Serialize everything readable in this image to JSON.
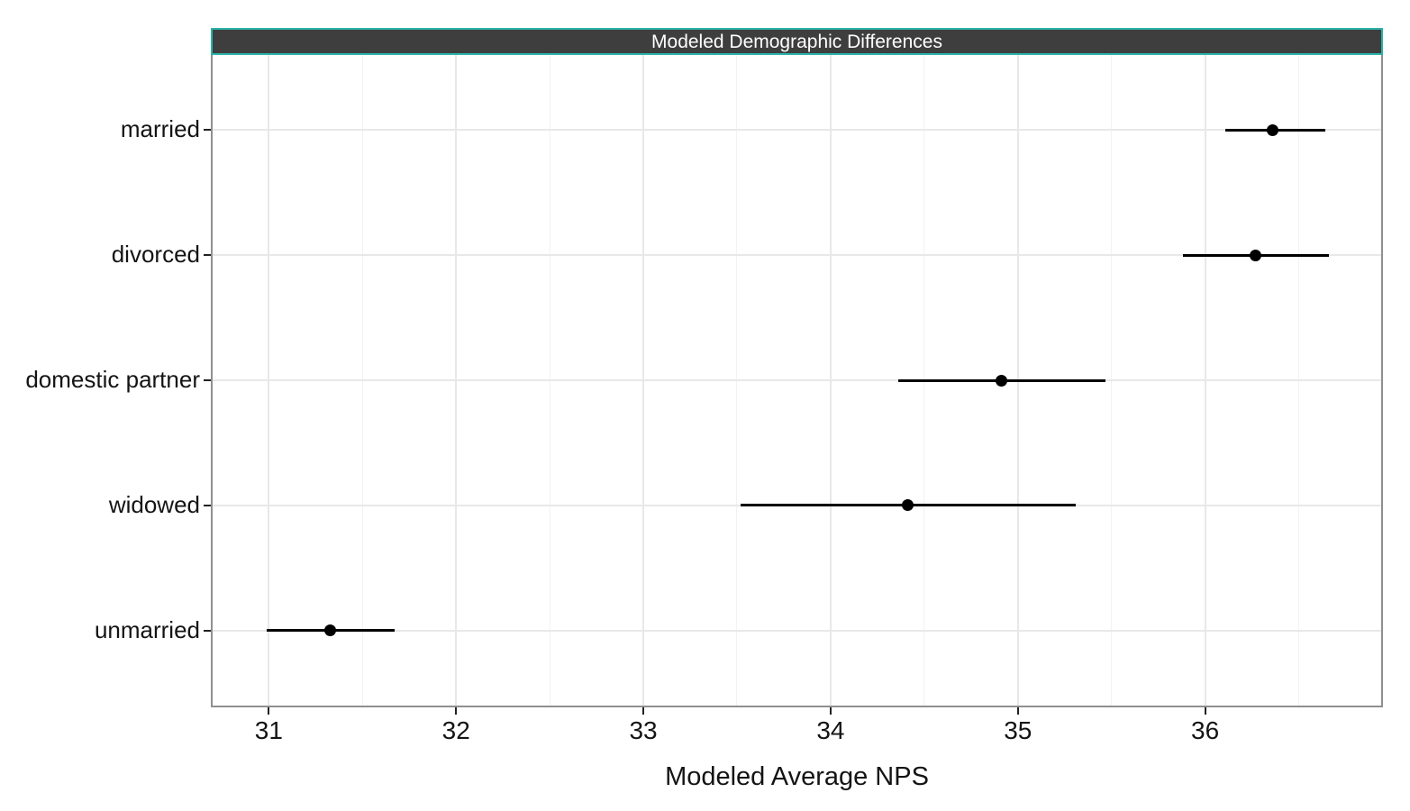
{
  "chart_data": {
    "type": "scatter",
    "subtype": "point-estimate-with-confidence-interval",
    "title": "Modeled Demographic Differences",
    "xlabel": "Modeled Average NPS",
    "ylabel": "",
    "categories": [
      "married",
      "divorced",
      "domestic partner",
      "widowed",
      "unmarried"
    ],
    "points": [
      {
        "category": "married",
        "estimate": 36.36,
        "ci_low": 36.11,
        "ci_high": 36.64
      },
      {
        "category": "divorced",
        "estimate": 36.27,
        "ci_low": 35.88,
        "ci_high": 36.66
      },
      {
        "category": "domestic partner",
        "estimate": 34.91,
        "ci_low": 34.36,
        "ci_high": 35.47
      },
      {
        "category": "widowed",
        "estimate": 34.41,
        "ci_low": 33.52,
        "ci_high": 35.31
      },
      {
        "category": "unmarried",
        "estimate": 31.33,
        "ci_low": 30.99,
        "ci_high": 31.67
      }
    ],
    "xlim": [
      30.7,
      36.94
    ],
    "x_ticks": [
      31,
      32,
      33,
      34,
      35,
      36
    ],
    "x_minor_ticks": [
      31.5,
      32.5,
      33.5,
      34.5,
      35.5,
      36.5
    ],
    "grid": true,
    "legend": "none"
  },
  "colors": {
    "strip_background": "#3e3e3e",
    "strip_border": "#2bb3a8",
    "strip_text": "#ffffff",
    "panel_border": "#8f8f8f",
    "grid_major": "#e8e8e8",
    "grid_minor": "#f2f2f2",
    "data": "#000000",
    "axis_text": "#141414",
    "page_background": "#ffffff"
  }
}
